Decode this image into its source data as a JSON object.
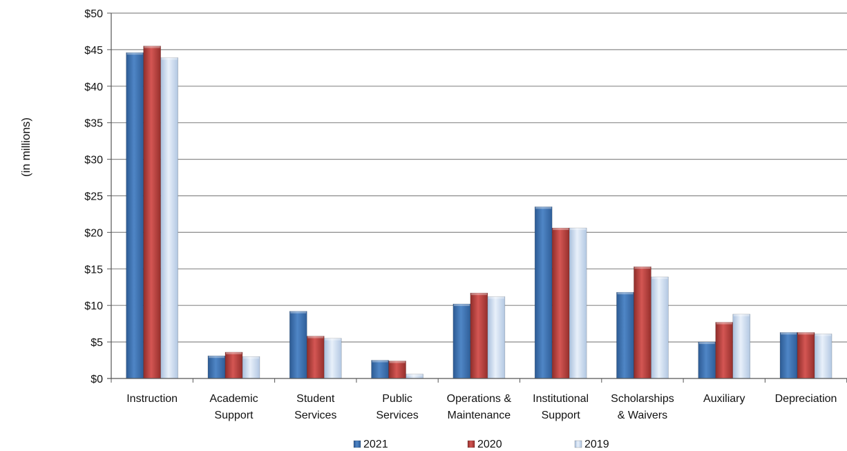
{
  "chart_data": {
    "type": "bar",
    "title": "",
    "ylabel": "(in millions)",
    "xlabel": "",
    "ylim": [
      0,
      50
    ],
    "y_ticks": [
      {
        "value": 0,
        "label": "$0"
      },
      {
        "value": 5,
        "label": "$5"
      },
      {
        "value": 10,
        "label": "$10"
      },
      {
        "value": 15,
        "label": "$15"
      },
      {
        "value": 20,
        "label": "$20"
      },
      {
        "value": 25,
        "label": "$25"
      },
      {
        "value": 30,
        "label": "$30"
      },
      {
        "value": 35,
        "label": "$35"
      },
      {
        "value": 40,
        "label": "$40"
      },
      {
        "value": 45,
        "label": "$45"
      },
      {
        "value": 50,
        "label": "$50"
      }
    ],
    "grid": true,
    "legend_position": "bottom",
    "categories": [
      [
        "Instruction"
      ],
      [
        "Academic",
        "Support"
      ],
      [
        "Student",
        "Services"
      ],
      [
        "Public",
        "Services"
      ],
      [
        "Operations &",
        "Maintenance"
      ],
      [
        "Institutional",
        "Support"
      ],
      [
        "Scholarships",
        "& Waivers"
      ],
      [
        "Auxiliary"
      ],
      [
        "Depreciation"
      ]
    ],
    "series": [
      {
        "name": "2021",
        "color": "#4a7ebb",
        "values": [
          44.6,
          3.1,
          9.2,
          2.5,
          10.2,
          23.5,
          11.8,
          5.0,
          6.3
        ]
      },
      {
        "name": "2020",
        "color": "#c0504d",
        "values": [
          45.5,
          3.6,
          5.8,
          2.4,
          11.7,
          20.6,
          15.3,
          7.7,
          6.3
        ]
      },
      {
        "name": "2019",
        "color": "#c6d9f1",
        "values": [
          43.9,
          3.0,
          5.5,
          0.6,
          11.2,
          20.6,
          13.9,
          8.8,
          6.1
        ]
      }
    ]
  }
}
